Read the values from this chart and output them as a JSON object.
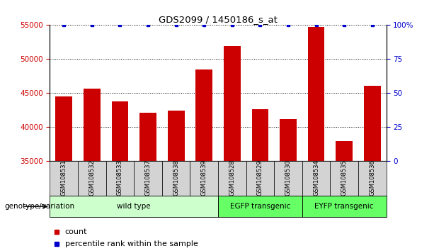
{
  "title": "GDS2099 / 1450186_s_at",
  "samples": [
    "GSM108531",
    "GSM108532",
    "GSM108533",
    "GSM108537",
    "GSM108538",
    "GSM108539",
    "GSM108528",
    "GSM108529",
    "GSM108530",
    "GSM108534",
    "GSM108535",
    "GSM108536"
  ],
  "counts": [
    44500,
    45600,
    43700,
    42100,
    42400,
    48500,
    51900,
    42600,
    41100,
    54700,
    37900,
    46000
  ],
  "percentile_ranks": [
    100,
    100,
    100,
    100,
    100,
    100,
    100,
    100,
    100,
    100,
    100,
    100
  ],
  "groups": [
    {
      "label": "wild type",
      "start": 0,
      "end": 6,
      "color": "#ccffcc"
    },
    {
      "label": "EGFP transgenic",
      "start": 6,
      "end": 9,
      "color": "#66ff66"
    },
    {
      "label": "EYFP transgenic",
      "start": 9,
      "end": 12,
      "color": "#66ff66"
    }
  ],
  "ylim_left": [
    35000,
    55000
  ],
  "yticks_left": [
    35000,
    40000,
    45000,
    50000,
    55000
  ],
  "ylim_right": [
    0,
    100
  ],
  "yticks_right": [
    0,
    25,
    50,
    75,
    100
  ],
  "bar_color": "#cc0000",
  "dot_color": "#0000cc",
  "bar_width": 0.6,
  "left_tick_color": "#cc0000",
  "right_tick_color": "#0000cc",
  "grid_color": "#000000",
  "sample_bg_color": "#d3d3d3",
  "genotype_label": "genotype/variation",
  "legend_count_label": "count",
  "legend_percentile_label": "percentile rank within the sample"
}
